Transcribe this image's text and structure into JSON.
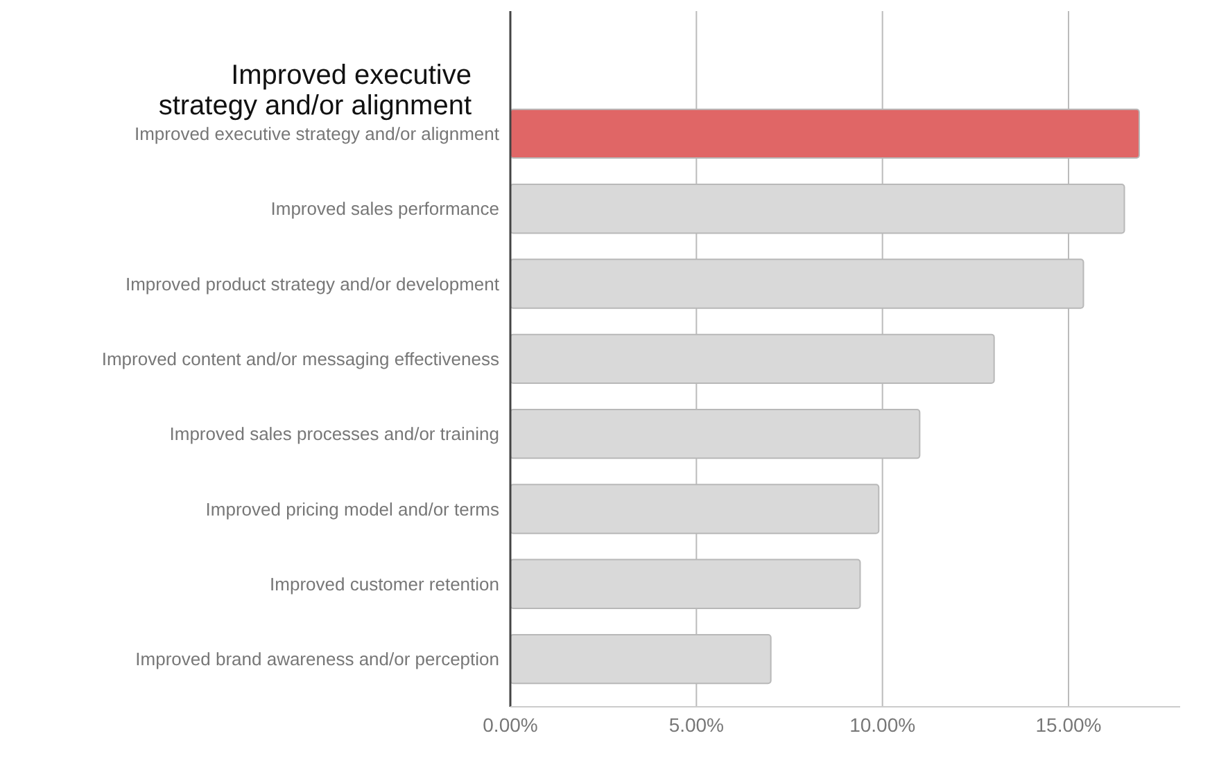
{
  "chart_data": {
    "type": "bar",
    "orientation": "horizontal",
    "categories": [
      "Improved executive strategy and/or alignment",
      "Improved sales performance",
      "Improved product strategy and/or development",
      "Improved content and/or messaging effectiveness",
      "Improved sales processes and/or training",
      "Improved pricing model and/or terms",
      "Improved customer retention",
      "Improved brand awareness and/or perception"
    ],
    "values": [
      16.9,
      16.5,
      15.4,
      13.0,
      11.0,
      9.9,
      9.4,
      7.0
    ],
    "colors": [
      "#e06666",
      "#d9d9d9",
      "#d9d9d9",
      "#d9d9d9",
      "#d9d9d9",
      "#d9d9d9",
      "#d9d9d9",
      "#d9d9d9"
    ],
    "xlim": [
      0,
      18
    ],
    "xticks": [
      {
        "value": 0,
        "label": "0.00%"
      },
      {
        "value": 5,
        "label": "5.00%"
      },
      {
        "value": 10,
        "label": "10.00%"
      },
      {
        "value": 15,
        "label": "15.00%"
      }
    ],
    "grid": "x",
    "annotations": [
      "Improved executive\nstrategy and/or alignment"
    ]
  }
}
